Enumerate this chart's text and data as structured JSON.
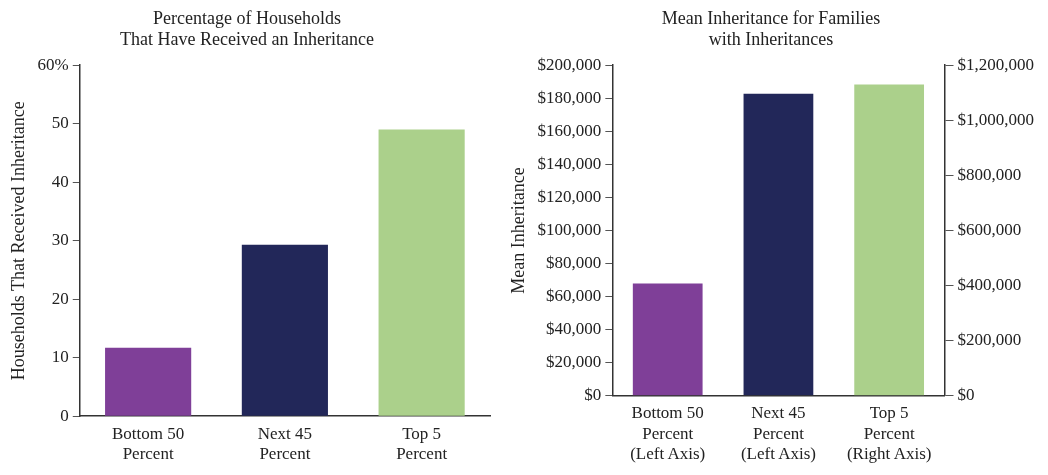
{
  "chart_data": [
    {
      "type": "bar",
      "title": "Percentage of Households\nThat Have Received an Inheritance",
      "ylabel": "Households That Received Inheritance",
      "categories": [
        "Bottom 50 Percent",
        "Next 45 Percent",
        "Top 5 Percent"
      ],
      "values": [
        11.7,
        29.3,
        49.0
      ],
      "colors": [
        "#7f3f98",
        "#222759",
        "#abd08b"
      ],
      "ylim": [
        0,
        60
      ],
      "yticks": [
        0,
        10,
        20,
        30,
        40,
        50,
        {
          "value": 60,
          "label": "60%"
        }
      ],
      "grid": false,
      "legend": false
    },
    {
      "type": "bar",
      "title": "Mean Inheritance for Families\nwith Inheritances",
      "ylabel": "Mean Inheritance",
      "categories": [
        "Bottom 50 Percent (Left Axis)",
        "Next 45 Percent (Left Axis)",
        "Top 5 Percent (Right Axis)"
      ],
      "series": [
        {
          "colors": [
            "#7f3f98",
            "#222759",
            null
          ],
          "values": [
            68000,
            182700,
            null
          ]
        },
        {
          "color": "#abd08b",
          "values": [
            null,
            null,
            1130000
          ],
          "axis": "y2"
        }
      ],
      "ylim": [
        0,
        200000
      ],
      "yticks": [
        {
          "value": 0,
          "label": "$0"
        },
        {
          "value": 20000,
          "label": "$20,000"
        },
        {
          "value": 40000,
          "label": "$40,000"
        },
        {
          "value": 60000,
          "label": "$60,000"
        },
        {
          "value": 80000,
          "label": "$80,000"
        },
        {
          "value": 100000,
          "label": "$100,000"
        },
        {
          "value": 120000,
          "label": "$120,000"
        },
        {
          "value": 140000,
          "label": "$140,000"
        },
        {
          "value": 160000,
          "label": "$160,000"
        },
        {
          "value": 180000,
          "label": "$180,000"
        },
        {
          "value": 200000,
          "label": "$200,000"
        }
      ],
      "y2lim": [
        0,
        1200000
      ],
      "y2ticks": [
        {
          "value": 0,
          "label": "$0"
        },
        {
          "value": 200000,
          "label": "$200,000"
        },
        {
          "value": 400000,
          "label": "$400,000"
        },
        {
          "value": 600000,
          "label": "$600,000"
        },
        {
          "value": 800000,
          "label": "$800,000"
        },
        {
          "value": 1000000,
          "label": "$1,000,000"
        },
        {
          "value": 1200000,
          "label": "$1,200,000"
        }
      ],
      "grid": false,
      "legend": false
    }
  ]
}
